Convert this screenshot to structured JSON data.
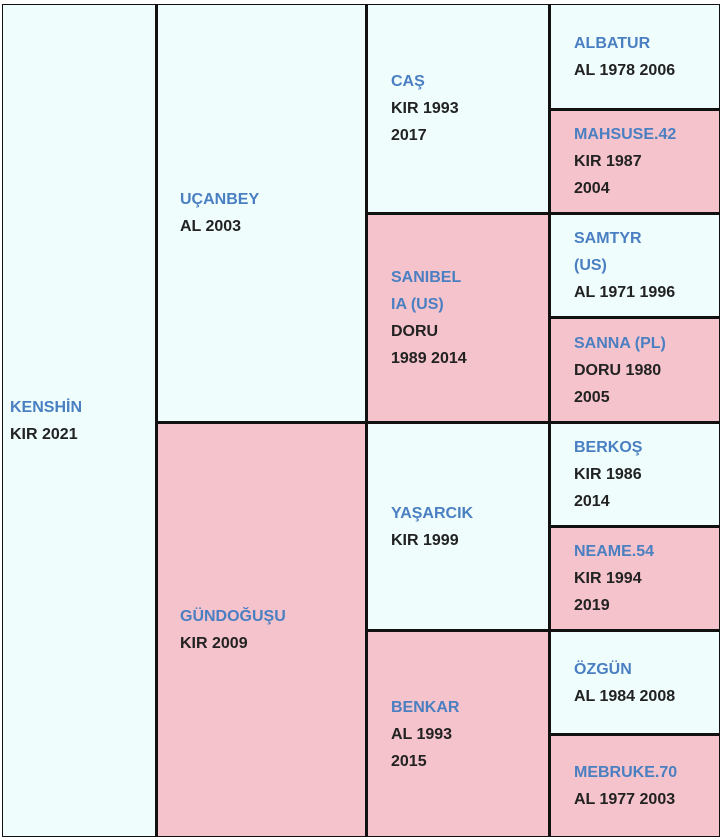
{
  "pedigree": {
    "generations": [
      [
        {
          "name": "KENSHİN",
          "details": "KIR 2021",
          "color": "#effdfd"
        }
      ],
      [
        {
          "name": "UÇANBEY",
          "details": "AL 2003",
          "color": "#effdfd"
        },
        {
          "name": "GÜNDOĞUŞU",
          "details": "KIR 2009",
          "color": "#f5c3cc"
        }
      ],
      [
        {
          "name": "CAŞ",
          "details": "KIR 1993 2017",
          "color": "#effdfd"
        },
        {
          "name": "SANIBEL IA (US)",
          "details": "DORU 1989 2014",
          "color": "#f5c3cc"
        },
        {
          "name": "YAŞARCIK",
          "details": "KIR 1999",
          "color": "#effdfd"
        },
        {
          "name": "BENKAR",
          "details": "AL 1993 2015",
          "color": "#f5c3cc"
        }
      ],
      [
        {
          "name": "ALBATUR",
          "details": "AL 1978 2006",
          "color": "#effdfd"
        },
        {
          "name": "MAHSUSE.42",
          "details": "KIR 1987 2004",
          "color": "#f5c3cc"
        },
        {
          "name": "SAMTYR (US)",
          "details": "AL 1971 1996",
          "color": "#effdfd"
        },
        {
          "name": "SANNA (PL)",
          "details": "DORU 1980 2005",
          "color": "#f5c3cc"
        },
        {
          "name": "BERKOŞ",
          "details": "KIR 1986 2014",
          "color": "#effdfd"
        },
        {
          "name": "NEAME.54",
          "details": "KIR 1994 2019",
          "color": "#f5c3cc"
        },
        {
          "name": "ÖZGÜN",
          "details": "AL 1984 2008",
          "color": "#effdfd"
        },
        {
          "name": "MEBRUKE.70",
          "details": "AL 1977 2003",
          "color": "#f5c3cc"
        }
      ]
    ]
  }
}
